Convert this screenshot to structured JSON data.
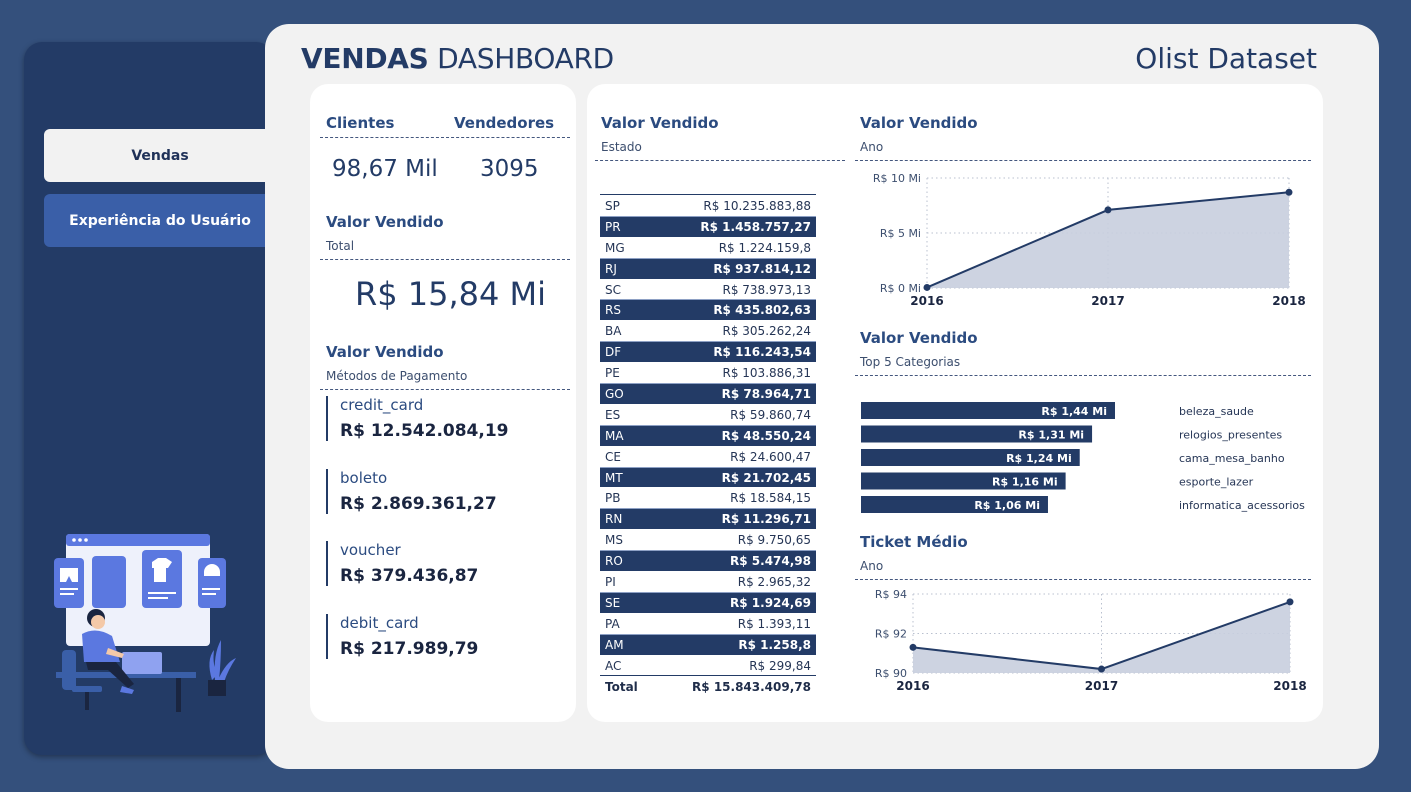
{
  "sidebar": {
    "items": [
      {
        "label": "Vendas",
        "active": true
      },
      {
        "label": "Experiência do Usuário",
        "active": false
      }
    ],
    "illustration_icon": "person-at-computer-shopping-illustration"
  },
  "header": {
    "title_bold": "VENDAS",
    "title_light": "DASHBOARD",
    "dataset_label": "Olist Dataset"
  },
  "kpis": {
    "clientes_label": "Clientes",
    "clientes_value": "98,67 Mil",
    "vendedores_label": "Vendedores",
    "vendedores_value": "3095",
    "total_title": "Valor Vendido",
    "total_subtitle": "Total",
    "total_value": "R$ 15,84 Mi"
  },
  "payment_methods": {
    "title": "Valor Vendido",
    "subtitle": "Métodos de Pagamento",
    "items": [
      {
        "label": "credit_card",
        "value": "R$ 12.542.084,19"
      },
      {
        "label": "boleto",
        "value": "R$ 2.869.361,27"
      },
      {
        "label": "voucher",
        "value": "R$ 379.436,87"
      },
      {
        "label": "debit_card",
        "value": "R$ 217.989,79"
      }
    ]
  },
  "state_table": {
    "title": "Valor Vendido",
    "subtitle": "Estado",
    "rows": [
      {
        "state": "SP",
        "value": "R$ 10.235.883,88",
        "dark": false
      },
      {
        "state": "PR",
        "value": "R$ 1.458.757,27",
        "dark": true
      },
      {
        "state": "MG",
        "value": "R$ 1.224.159,8",
        "dark": false
      },
      {
        "state": "RJ",
        "value": "R$ 937.814,12",
        "dark": true
      },
      {
        "state": "SC",
        "value": "R$ 738.973,13",
        "dark": false
      },
      {
        "state": "RS",
        "value": "R$ 435.802,63",
        "dark": true
      },
      {
        "state": "BA",
        "value": "R$ 305.262,24",
        "dark": false
      },
      {
        "state": "DF",
        "value": "R$ 116.243,54",
        "dark": true
      },
      {
        "state": "PE",
        "value": "R$ 103.886,31",
        "dark": false
      },
      {
        "state": "GO",
        "value": "R$ 78.964,71",
        "dark": true
      },
      {
        "state": "ES",
        "value": "R$ 59.860,74",
        "dark": false
      },
      {
        "state": "MA",
        "value": "R$ 48.550,24",
        "dark": true
      },
      {
        "state": "CE",
        "value": "R$ 24.600,47",
        "dark": false
      },
      {
        "state": "MT",
        "value": "R$ 21.702,45",
        "dark": true
      },
      {
        "state": "PB",
        "value": "R$ 18.584,15",
        "dark": false
      },
      {
        "state": "RN",
        "value": "R$ 11.296,71",
        "dark": true
      },
      {
        "state": "MS",
        "value": "R$ 9.750,65",
        "dark": false
      },
      {
        "state": "RO",
        "value": "R$ 5.474,98",
        "dark": true
      },
      {
        "state": "PI",
        "value": "R$ 2.965,32",
        "dark": false
      },
      {
        "state": "SE",
        "value": "R$ 1.924,69",
        "dark": true
      },
      {
        "state": "PA",
        "value": "R$ 1.393,11",
        "dark": false
      },
      {
        "state": "AM",
        "value": "R$ 1.258,8",
        "dark": true
      },
      {
        "state": "AC",
        "value": "R$ 299,84",
        "dark": false
      }
    ],
    "total_label": "Total",
    "total_value": "R$ 15.843.409,78"
  },
  "year_chart": {
    "title": "Valor Vendido",
    "subtitle": "Ano"
  },
  "categories_chart": {
    "title": "Valor Vendido",
    "subtitle": "Top 5 Categorias"
  },
  "ticket_chart": {
    "title": "Ticket Médio",
    "subtitle": "Ano"
  },
  "colors": {
    "navy": "#233b66",
    "accent_blue": "#3a5fa8",
    "area_fill": "#c8cede",
    "background": "#34507c"
  },
  "chart_data": [
    {
      "type": "area",
      "title": "Valor Vendido",
      "subtitle": "Ano",
      "x": [
        "2016",
        "2017",
        "2018"
      ],
      "values": [
        0.05,
        7.1,
        8.7
      ],
      "ylim": [
        0,
        10
      ],
      "yticks": [
        "R$ 0 Mi",
        "R$ 5 Mi",
        "R$ 10 Mi"
      ],
      "ytick_values": [
        0,
        5,
        10
      ],
      "grid": true
    },
    {
      "type": "bar",
      "orientation": "horizontal",
      "title": "Valor Vendido",
      "subtitle": "Top 5 Categorias",
      "categories": [
        "beleza_saude",
        "relogios_presentes",
        "cama_mesa_banho",
        "esporte_lazer",
        "informatica_acessorios"
      ],
      "values": [
        1.44,
        1.31,
        1.24,
        1.16,
        1.06
      ],
      "labels": [
        "R$ 1,44 Mi",
        "R$ 1,31 Mi",
        "R$ 1,24 Mi",
        "R$ 1,16 Mi",
        "R$ 1,06 Mi"
      ]
    },
    {
      "type": "area",
      "title": "Ticket Médio",
      "subtitle": "Ano",
      "x": [
        "2016",
        "2017",
        "2018"
      ],
      "values": [
        91.3,
        90.2,
        93.6
      ],
      "ylim": [
        90,
        94
      ],
      "yticks": [
        "R$ 90",
        "R$ 92",
        "R$ 94"
      ],
      "ytick_values": [
        90,
        92,
        94
      ],
      "grid": true
    }
  ]
}
